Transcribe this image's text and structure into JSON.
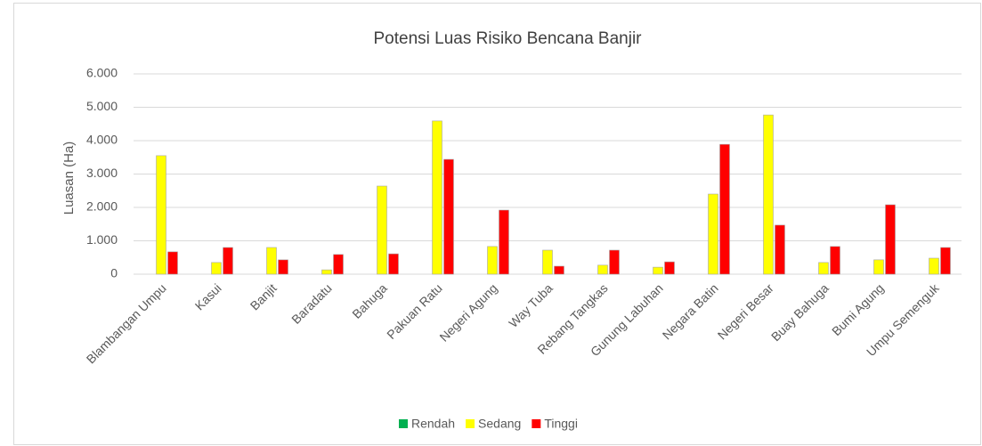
{
  "chart_data": {
    "type": "bar",
    "title": "Potensi Luas Risiko Bencana Banjir",
    "y_label": "Luasan (Ha)",
    "categories": [
      "Blambangan Umpu",
      "Kasui",
      "Banjit",
      "Baradatu",
      "Bahuga",
      "Pakuan Ratu",
      "Negeri Agung",
      "Way Tuba",
      "Rebang Tangkas",
      "Gunung Labuhan",
      "Negara Batin",
      "Negeri Besar",
      "Buay Bahuga",
      "Bumi Agung",
      "Umpu Semenguk"
    ],
    "series": [
      {
        "name": "Rendah",
        "color": "#00b050",
        "values": [
          0,
          0,
          0,
          0,
          0,
          0,
          0,
          0,
          0,
          0,
          0,
          0,
          0,
          0,
          0
        ]
      },
      {
        "name": "Sedang",
        "color": "#ffff00",
        "values": [
          3550,
          350,
          800,
          130,
          2640,
          4590,
          830,
          720,
          270,
          210,
          2400,
          4770,
          350,
          430,
          480
        ]
      },
      {
        "name": "Tinggi",
        "color": "#ff0000",
        "values": [
          670,
          800,
          430,
          590,
          610,
          3440,
          1920,
          240,
          720,
          370,
          3890,
          1470,
          830,
          2080,
          800
        ]
      }
    ],
    "ylim": [
      0,
      6000
    ],
    "yticks": [
      0,
      {
        "value": 1000,
        "label": "1.000"
      },
      {
        "value": 2000,
        "label": "2.000"
      },
      {
        "value": 3000,
        "label": "3.000"
      },
      {
        "value": 4000,
        "label": "4.000"
      },
      {
        "value": 5000,
        "label": "5.000"
      },
      {
        "value": 6000,
        "label": "6.000"
      }
    ],
    "grid": true,
    "legend": "bottom"
  }
}
